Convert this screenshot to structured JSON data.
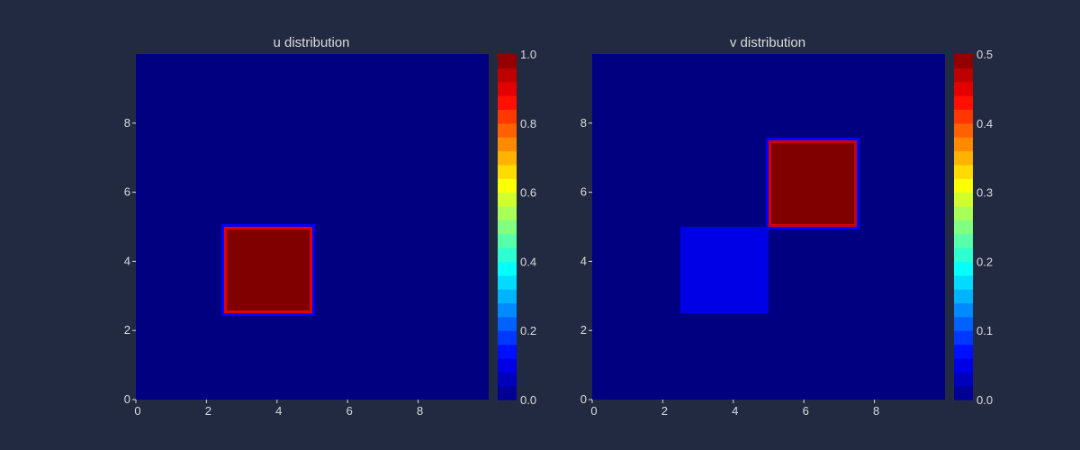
{
  "background": "#222a42",
  "text_color": "#dcdcdc",
  "colormap": "jet",
  "chart_data": [
    {
      "type": "heatmap",
      "title": "u distribution",
      "xlabel": "",
      "ylabel": "",
      "xlim": [
        0,
        10
      ],
      "ylim": [
        0,
        10
      ],
      "xticks": [
        0,
        2,
        4,
        6,
        8
      ],
      "yticks": [
        0,
        2,
        4,
        6,
        8
      ],
      "background_value": 0.0,
      "regions": [
        {
          "x": [
            2.5,
            5.0
          ],
          "y": [
            2.5,
            5.0
          ],
          "value": 1.0,
          "edge_value": 0.9,
          "halo_value": 0.12
        }
      ],
      "colorbar": {
        "range": [
          0.0,
          1.0
        ],
        "ticks": [
          "0.0",
          "0.2",
          "0.4",
          "0.6",
          "0.8",
          "1.0"
        ]
      }
    },
    {
      "type": "heatmap",
      "title": "v distribution",
      "xlabel": "",
      "ylabel": "",
      "xlim": [
        0,
        10
      ],
      "ylim": [
        0,
        10
      ],
      "xticks": [
        0,
        2,
        4,
        6,
        8
      ],
      "yticks": [
        0,
        2,
        4,
        6,
        8
      ],
      "background_value": 0.0,
      "regions": [
        {
          "x": [
            2.5,
            5.0
          ],
          "y": [
            2.5,
            5.0
          ],
          "value": 0.05
        },
        {
          "x": [
            5.0,
            7.5
          ],
          "y": [
            5.0,
            7.5
          ],
          "value": 0.5,
          "edge_value": 0.46,
          "halo_value": 0.06
        }
      ],
      "colorbar": {
        "range": [
          0.0,
          0.5
        ],
        "ticks": [
          "0.0",
          "0.1",
          "0.2",
          "0.3",
          "0.4",
          "0.5"
        ]
      }
    }
  ]
}
